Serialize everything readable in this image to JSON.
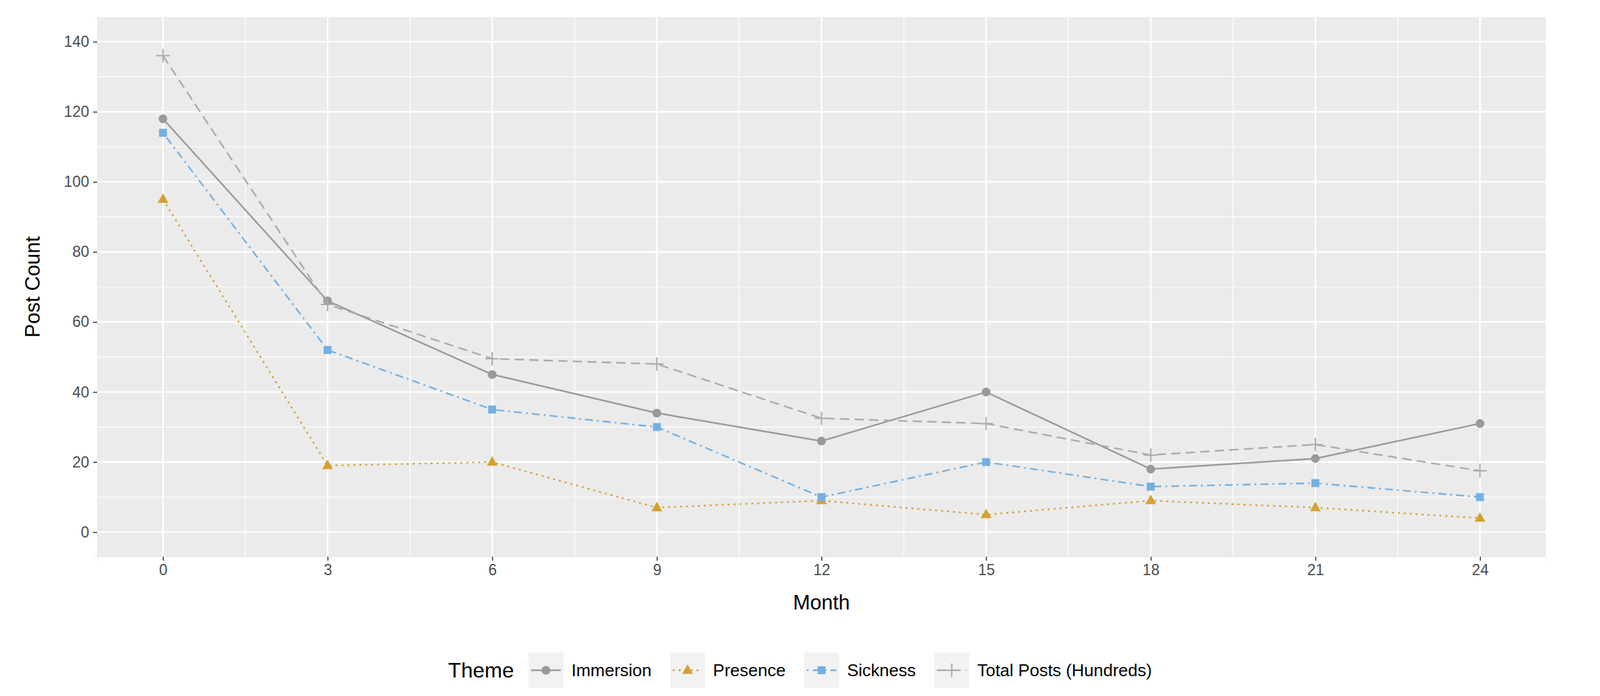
{
  "chart_data": {
    "type": "line",
    "x_label": "Month",
    "y_label": "Post Count",
    "legend_title": "Theme",
    "x": [
      0,
      3,
      6,
      9,
      12,
      15,
      18,
      21,
      24
    ],
    "series": [
      {
        "name": "Immersion",
        "color": "#999999",
        "marker": "circle",
        "line_style": "solid",
        "values": [
          118,
          66,
          45,
          34,
          26,
          40,
          18,
          21,
          31
        ]
      },
      {
        "name": "Presence",
        "color": "#d6a031",
        "marker": "triangle",
        "line_style": "dotted",
        "values": [
          95,
          19,
          20,
          7,
          9,
          5,
          9,
          7,
          4
        ]
      },
      {
        "name": "Sickness",
        "color": "#74b0e2",
        "marker": "square",
        "line_style": "dotdash",
        "values": [
          114,
          52,
          35,
          30,
          10,
          20,
          13,
          14,
          10
        ]
      },
      {
        "name": "Total Posts (Hundreds)",
        "color": "#aaaaaa",
        "marker": "plus",
        "line_style": "dashed",
        "values": [
          136,
          65,
          49.5,
          48,
          32.5,
          31,
          22,
          25,
          17.5
        ]
      }
    ],
    "xlim": [
      -1.2,
      25.2
    ],
    "xticks": [
      0,
      3,
      6,
      9,
      12,
      15,
      18,
      21,
      24
    ],
    "ylim": [
      -7,
      147
    ],
    "yticks": [
      0,
      20,
      40,
      60,
      80,
      100,
      120,
      140
    ],
    "grid": true,
    "legend": "bottom"
  }
}
